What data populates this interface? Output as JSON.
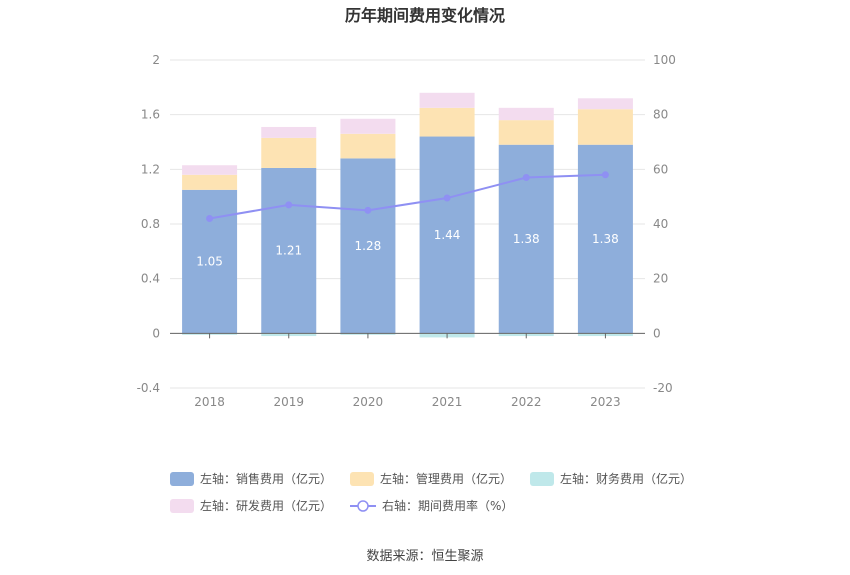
{
  "chart_data": {
    "type": "bar",
    "title": "历年期间费用变化情况",
    "categories": [
      "2018",
      "2019",
      "2020",
      "2021",
      "2022",
      "2023"
    ],
    "stacked": true,
    "left_axis": {
      "ylim": [
        -0.4,
        2
      ],
      "ticks": [
        "-0.4",
        "0",
        "0.4",
        "0.8",
        "1.2",
        "1.6",
        "2"
      ]
    },
    "right_axis": {
      "ylim": [
        -20,
        100
      ],
      "ticks": [
        "-20",
        "0",
        "20",
        "40",
        "60",
        "80",
        "100"
      ]
    },
    "series": [
      {
        "name": "左轴：销售费用（亿元）",
        "type": "bar",
        "axis": "left",
        "color": "#8eaedb",
        "values": [
          1.05,
          1.21,
          1.28,
          1.44,
          1.38,
          1.38
        ],
        "labels": [
          "1.05",
          "1.21",
          "1.28",
          "1.44",
          "1.38",
          "1.38"
        ]
      },
      {
        "name": "左轴：管理费用（亿元）",
        "type": "bar",
        "axis": "left",
        "color": "#fddb9a",
        "values": [
          0.11,
          0.22,
          0.18,
          0.21,
          0.18,
          0.26
        ]
      },
      {
        "name": "左轴：财务费用（亿元）",
        "type": "bar",
        "axis": "left",
        "color": "#7fd3d8",
        "values": [
          -0.005,
          -0.02,
          -0.01,
          -0.03,
          -0.02,
          -0.02
        ]
      },
      {
        "name": "左轴：研发费用（亿元）",
        "type": "bar",
        "axis": "left",
        "color": "#e8b9dc",
        "values": [
          0.07,
          0.08,
          0.11,
          0.11,
          0.09,
          0.08
        ]
      },
      {
        "name": "右轴：期间费用率（%）",
        "type": "line",
        "axis": "right",
        "color": "#7b7ef2",
        "values": [
          42,
          47,
          45,
          49.5,
          57,
          58
        ]
      }
    ],
    "legend_position": "bottom",
    "grid": true
  },
  "legend": {
    "row1": [
      "左轴：销售费用（亿元）",
      "左轴：管理费用（亿元）",
      "左轴：财务费用（亿元）"
    ],
    "row2": [
      "左轴：研发费用（亿元）",
      "右轴：期间费用率（%）"
    ]
  },
  "colors": {
    "sales": "#8eaedb",
    "admin": "#fde3b3",
    "finance": "#bfe8ea",
    "rnd": "#f3dcef",
    "rate": "#8f90f3"
  },
  "source": "数据来源：恒生聚源"
}
